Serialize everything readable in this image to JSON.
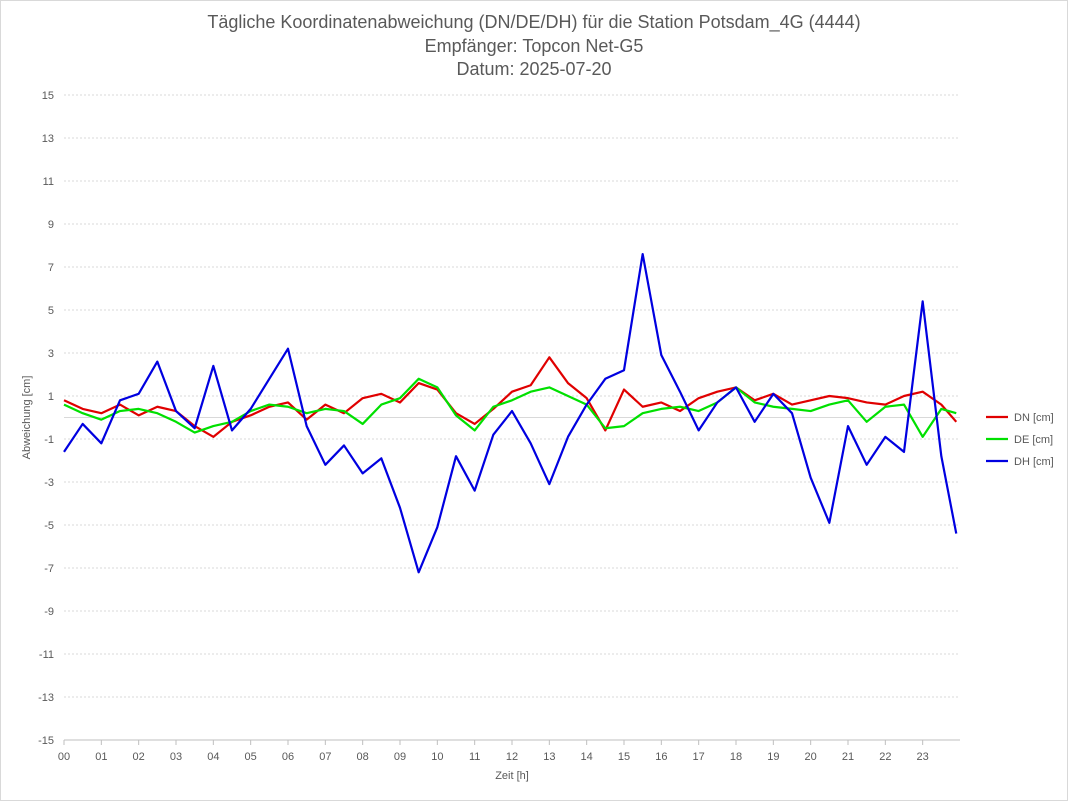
{
  "chart_data": {
    "type": "line",
    "title": "Tägliche Koordinatenabweichung (DN/DE/DH) für die Station Potsdam_4G (4444)",
    "subtitle_1": "Empfänger: Topcon Net-G5",
    "subtitle_2": "Datum: 2025-07-20",
    "xlabel": "Zeit [h]",
    "ylabel": "Abweichung [cm]",
    "xlim": [
      0,
      24
    ],
    "ylim": [
      -15,
      15
    ],
    "x_ticks": [
      "00",
      "01",
      "02",
      "03",
      "04",
      "05",
      "06",
      "07",
      "08",
      "09",
      "10",
      "11",
      "12",
      "13",
      "14",
      "15",
      "16",
      "17",
      "18",
      "19",
      "20",
      "21",
      "22",
      "23"
    ],
    "y_ticks": [
      15,
      13,
      11,
      9,
      7,
      5,
      3,
      1,
      -1,
      -3,
      -5,
      -7,
      -9,
      -11,
      -13,
      -15
    ],
    "grid": "horizontal dotted",
    "legend_position": "right",
    "x": [
      0,
      0.5,
      1,
      1.5,
      2,
      2.5,
      3,
      3.5,
      4,
      4.5,
      5,
      5.5,
      6,
      6.5,
      7,
      7.5,
      8,
      8.5,
      9,
      9.5,
      10,
      10.5,
      11,
      11.5,
      12,
      12.5,
      13,
      13.5,
      14,
      14.5,
      15,
      15.5,
      16,
      16.5,
      17,
      17.5,
      18,
      18.5,
      19,
      19.5,
      20,
      20.5,
      21,
      21.5,
      22,
      22.5,
      23,
      23.5,
      23.9
    ],
    "series": [
      {
        "name": "DN [cm]",
        "color": "#e00000",
        "values": [
          0.8,
          0.4,
          0.2,
          0.6,
          0.1,
          0.5,
          0.3,
          -0.4,
          -0.9,
          -0.2,
          0.1,
          0.5,
          0.7,
          -0.1,
          0.6,
          0.2,
          0.9,
          1.1,
          0.7,
          1.6,
          1.3,
          0.2,
          -0.3,
          0.4,
          1.2,
          1.5,
          2.8,
          1.6,
          0.9,
          -0.6,
          1.3,
          0.5,
          0.7,
          0.3,
          0.9,
          1.2,
          1.4,
          0.8,
          1.1,
          0.6,
          0.8,
          1.0,
          0.9,
          0.7,
          0.6,
          1.0,
          1.2,
          0.6,
          -0.2
        ]
      },
      {
        "name": "DE [cm]",
        "color": "#00e000",
        "values": [
          0.6,
          0.2,
          -0.1,
          0.3,
          0.4,
          0.2,
          -0.2,
          -0.7,
          -0.4,
          -0.2,
          0.3,
          0.6,
          0.5,
          0.2,
          0.4,
          0.3,
          -0.3,
          0.6,
          0.9,
          1.8,
          1.4,
          0.1,
          -0.6,
          0.5,
          0.8,
          1.2,
          1.4,
          1.0,
          0.6,
          -0.5,
          -0.4,
          0.2,
          0.4,
          0.5,
          0.3,
          0.7,
          1.4,
          0.7,
          0.5,
          0.4,
          0.3,
          0.6,
          0.8,
          -0.2,
          0.5,
          0.6,
          -0.9,
          0.4,
          0.2
        ]
      },
      {
        "name": "DH [cm]",
        "color": "#0000e0",
        "values": [
          -1.6,
          -0.3,
          -1.2,
          0.8,
          1.1,
          2.6,
          0.3,
          -0.5,
          2.4,
          -0.6,
          0.4,
          1.8,
          3.2,
          -0.4,
          -2.2,
          -1.3,
          -2.6,
          -1.9,
          -4.2,
          -7.2,
          -5.1,
          -1.8,
          -3.4,
          -0.8,
          0.3,
          -1.2,
          -3.1,
          -0.9,
          0.6,
          1.8,
          2.2,
          7.6,
          2.9,
          1.2,
          -0.6,
          0.7,
          1.4,
          -0.2,
          1.1,
          0.2,
          -2.8,
          -4.9,
          -0.4,
          -2.2,
          -0.9,
          -1.6,
          5.4,
          -1.8,
          -5.4
        ]
      }
    ]
  }
}
